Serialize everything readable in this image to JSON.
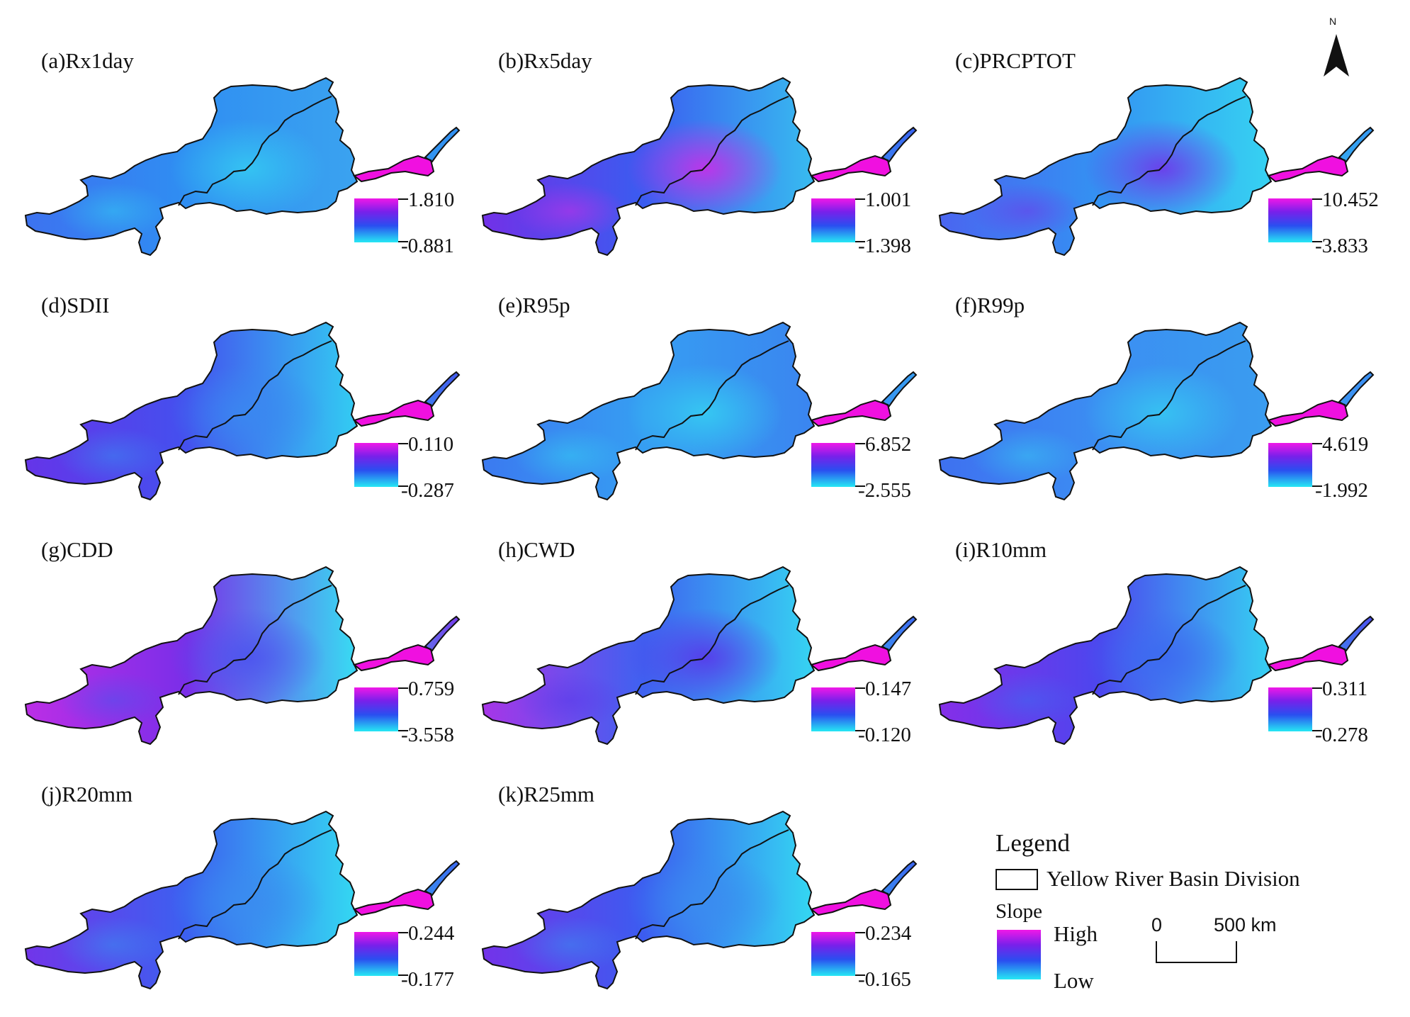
{
  "north_label": "N",
  "panels": [
    {
      "title": "(a)Rx1day",
      "max": "1.810",
      "min": "-0.881",
      "colors": [
        "#2f8ef2",
        "#3f6ef0",
        "#34c8f2",
        "#3aa2f0"
      ]
    },
    {
      "title": "(b)Rx5day",
      "max": "1.001",
      "min": "-1.398",
      "colors": [
        "#3a5cf0",
        "#7b2ae6",
        "#c92ee8",
        "#38b8f0"
      ]
    },
    {
      "title": "(c)PRCPTOT",
      "max": "10.452",
      "min": "-3.833",
      "colors": [
        "#3392f2",
        "#4e5ef0",
        "#7036ea",
        "#36d0f2"
      ]
    },
    {
      "title": "(d)SDII",
      "max": "0.110",
      "min": "-0.287",
      "colors": [
        "#4450ee",
        "#6a30e8",
        "#3a88f0",
        "#33c8f2"
      ]
    },
    {
      "title": "(e)R95p",
      "max": "6.852",
      "min": "-2.555",
      "colors": [
        "#369ef2",
        "#3c74f0",
        "#35ccf2",
        "#3a86f0"
      ]
    },
    {
      "title": "(f)R99p",
      "max": "4.619",
      "min": "-1.992",
      "colors": [
        "#3b8ef2",
        "#3f6cf0",
        "#36c6f2",
        "#3a9cf0"
      ]
    },
    {
      "title": "(g)CDD",
      "max": "0.759",
      "min": "-3.558",
      "colors": [
        "#7a2ee8",
        "#c62ee6",
        "#4c54ee",
        "#3ad6f2"
      ]
    },
    {
      "title": "(h)CWD",
      "max": "0.147",
      "min": "-0.120",
      "colors": [
        "#3e62f0",
        "#b82ee6",
        "#5838ea",
        "#36d0f2"
      ]
    },
    {
      "title": "(i)R10mm",
      "max": "0.311",
      "min": "-0.278",
      "colors": [
        "#4c46ee",
        "#8e2ae8",
        "#3c6af0",
        "#36ccf2"
      ]
    },
    {
      "title": "(j)R20mm",
      "max": "0.244",
      "min": "-0.177",
      "colors": [
        "#3c60f0",
        "#7a2ee8",
        "#3a8cf0",
        "#34d4f2"
      ]
    },
    {
      "title": "(k)R25mm",
      "max": "0.234",
      "min": "-0.165",
      "colors": [
        "#3c5cf0",
        "#7c2ce8",
        "#3a8cf0",
        "#34d4f2"
      ]
    }
  ],
  "outlier_color": "#f010e0",
  "legend": {
    "title": "Legend",
    "boundary_label": "Yellow River Basin Division",
    "slope_label": "Slope",
    "high_label": "High",
    "low_label": "Low"
  },
  "scale_bar": {
    "zero": "0",
    "right_label": "500 km"
  }
}
